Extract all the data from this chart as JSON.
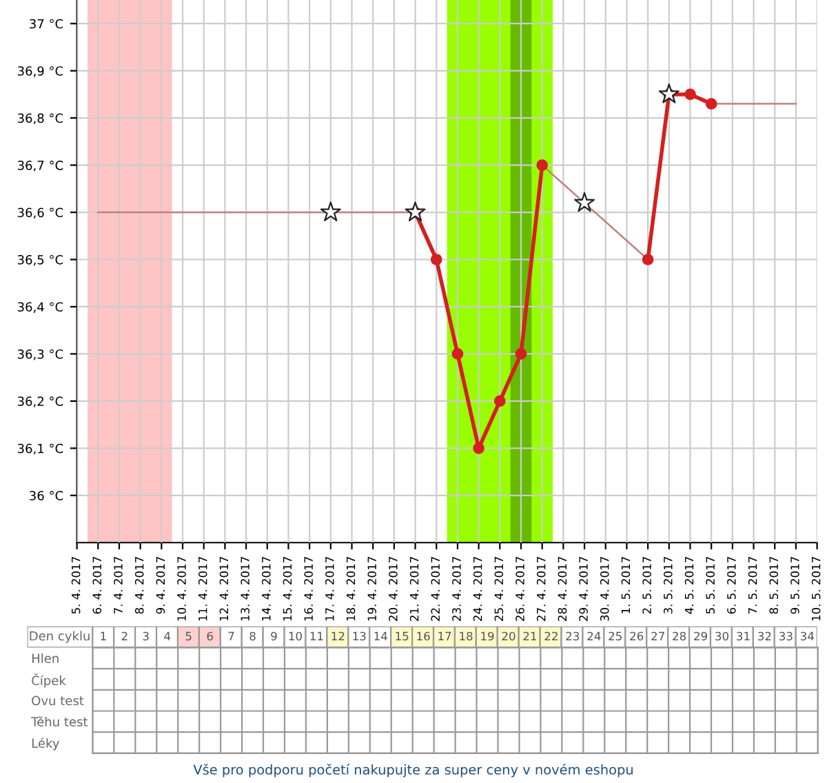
{
  "chart_data": [
    {
      "type": "line",
      "x": [
        "2017-04-06",
        "2017-04-17",
        "2017-04-21",
        "2017-04-22",
        "2017-04-27",
        "2017-04-29",
        "2017-05-02",
        "2017-05-03",
        "2017-05-05",
        "2017-05-09"
      ],
      "series": [
        {
          "color": "#c08080",
          "line_style": "solid",
          "marker": "none",
          "values": [
            36.6,
            36.6,
            36.6,
            null,
            36.7,
            36.62,
            36.5,
            null,
            36.83,
            36.83
          ]
        },
        {
          "color": "#d42020",
          "line_style": "solid",
          "marker": "circle",
          "x": [
            "2017-04-21",
            "2017-04-22",
            "2017-04-23",
            "2017-04-24",
            "2017-04-25",
            "2017-04-26",
            "2017-04-27",
            "2017-04-28",
            "2017-05-02",
            "2017-05-03",
            "2017-05-04",
            "2017-05-05"
          ],
          "values": [
            36.6,
            36.5,
            36.3,
            36.1,
            36.2,
            36.3,
            36.7,
            null,
            36.5,
            36.85,
            36.85,
            36.83
          ]
        },
        {
          "type": "scatter",
          "color": "#ffffff",
          "marker": "star",
          "x": [
            "2017-04-17",
            "2017-04-21",
            "2017-04-29",
            "2017-05-03"
          ],
          "values": [
            36.6,
            36.6,
            36.62,
            36.85
          ]
        }
      ],
      "bands": [
        {
          "axis": "x",
          "from": "2017-04-05T12:00",
          "to": "2017-04-09T12:00",
          "color": "#ffc4c4"
        },
        {
          "axis": "x",
          "from": "2017-04-22T12:00",
          "to": "2017-04-27T12:00",
          "color": "#99ff00"
        },
        {
          "axis": "x",
          "from": "2017-04-25T12:00",
          "to": "2017-04-26T12:00",
          "color": "#66bb00"
        }
      ],
      "xlim": [
        "2017-04-05",
        "2017-05-10"
      ],
      "xticks": [
        {
          "value": "2017-04-05",
          "label": "5. 4. 2017"
        },
        {
          "value": "2017-04-06",
          "label": "6. 4. 2017"
        },
        {
          "value": "2017-04-07",
          "label": "7. 4. 2017"
        },
        {
          "value": "2017-04-08",
          "label": "8. 4. 2017"
        },
        {
          "value": "2017-04-09",
          "label": "9. 4. 2017"
        },
        {
          "value": "2017-04-10",
          "label": "10. 4. 2017"
        },
        {
          "value": "2017-04-11",
          "label": "11. 4. 2017"
        },
        {
          "value": "2017-04-12",
          "label": "12. 4. 2017"
        },
        {
          "value": "2017-04-13",
          "label": "13. 4. 2017"
        },
        {
          "value": "2017-04-14",
          "label": "14. 4. 2017"
        },
        {
          "value": "2017-04-15",
          "label": "15. 4. 2017"
        },
        {
          "value": "2017-04-16",
          "label": "16. 4. 2017"
        },
        {
          "value": "2017-04-17",
          "label": "17. 4. 2017"
        },
        {
          "value": "2017-04-18",
          "label": "18. 4. 2017"
        },
        {
          "value": "2017-04-19",
          "label": "19. 4. 2017"
        },
        {
          "value": "2017-04-20",
          "label": "20. 4. 2017"
        },
        {
          "value": "2017-04-21",
          "label": "21. 4. 2017"
        },
        {
          "value": "2017-04-22",
          "label": "22. 4. 2017"
        },
        {
          "value": "2017-04-23",
          "label": "23. 4. 2017"
        },
        {
          "value": "2017-04-24",
          "label": "24. 4. 2017"
        },
        {
          "value": "2017-04-25",
          "label": "25. 4. 2017"
        },
        {
          "value": "2017-04-26",
          "label": "26. 4. 2017"
        },
        {
          "value": "2017-04-27",
          "label": "27. 4. 2017"
        },
        {
          "value": "2017-04-28",
          "label": "28. 4. 2017"
        },
        {
          "value": "2017-04-29",
          "label": "29. 4. 2017"
        },
        {
          "value": "2017-04-30",
          "label": "30. 4. 2017"
        },
        {
          "value": "2017-05-01",
          "label": "1. 5. 2017"
        },
        {
          "value": "2017-05-02",
          "label": "2. 5. 2017"
        },
        {
          "value": "2017-05-03",
          "label": "3. 5. 2017"
        },
        {
          "value": "2017-05-04",
          "label": "4. 5. 2017"
        },
        {
          "value": "2017-05-05",
          "label": "5. 5. 2017"
        },
        {
          "value": "2017-05-06",
          "label": "6. 5. 2017"
        },
        {
          "value": "2017-05-07",
          "label": "7. 5. 2017"
        },
        {
          "value": "2017-05-08",
          "label": "8. 5. 2017"
        },
        {
          "value": "2017-05-09",
          "label": "9. 5. 2017"
        },
        {
          "value": "2017-05-10",
          "label": "10. 5. 2017"
        }
      ],
      "ylim": [
        35.9,
        37.05
      ],
      "yticks": [
        {
          "value": 36,
          "label": "36 °C"
        },
        {
          "value": 36.1,
          "label": "36,1 °C"
        },
        {
          "value": 36.2,
          "label": "36,2 °C"
        },
        {
          "value": 36.3,
          "label": "36,3 °C"
        },
        {
          "value": 36.4,
          "label": "36,4 °C"
        },
        {
          "value": 36.5,
          "label": "36,5 °C"
        },
        {
          "value": 36.6,
          "label": "36,6 °C"
        },
        {
          "value": 36.7,
          "label": "36,7 °C"
        },
        {
          "value": 36.8,
          "label": "36,8 °C"
        },
        {
          "value": 36.9,
          "label": "36,9 °C"
        },
        {
          "value": 37,
          "label": "37 °C"
        }
      ],
      "grid": true,
      "legend": false
    },
    {
      "type": "heatmap",
      "xlabel": "Den cyklu",
      "cells": [
        [
          null,
          null,
          null,
          null,
          null,
          null,
          null,
          null,
          null,
          null,
          null,
          null,
          null,
          null,
          null,
          null,
          null,
          null,
          null,
          null,
          null,
          null,
          null,
          null,
          null,
          null,
          null,
          null,
          null,
          null,
          null,
          null,
          null,
          null
        ],
        [
          null,
          null,
          null,
          null,
          null,
          null,
          null,
          null,
          null,
          null,
          null,
          null,
          null,
          null,
          null,
          null,
          null,
          null,
          null,
          null,
          null,
          null,
          null,
          null,
          null,
          null,
          null,
          null,
          null,
          null,
          null,
          null,
          null,
          null
        ],
        [
          null,
          null,
          null,
          null,
          null,
          null,
          null,
          null,
          null,
          null,
          null,
          null,
          null,
          null,
          null,
          null,
          null,
          null,
          null,
          null,
          null,
          null,
          null,
          null,
          null,
          null,
          null,
          null,
          null,
          null,
          null,
          null,
          null,
          null
        ],
        [
          null,
          null,
          null,
          null,
          null,
          null,
          null,
          null,
          null,
          null,
          null,
          null,
          null,
          null,
          null,
          null,
          null,
          null,
          null,
          null,
          null,
          null,
          null,
          null,
          null,
          null,
          null,
          null,
          null,
          null,
          null,
          null,
          null,
          null
        ],
        [
          null,
          null,
          null,
          null,
          null,
          null,
          null,
          null,
          null,
          null,
          null,
          null,
          null,
          null,
          null,
          null,
          null,
          null,
          null,
          null,
          null,
          null,
          null,
          null,
          null,
          null,
          null,
          null,
          null,
          null,
          null,
          null,
          null,
          null
        ]
      ],
      "categories": [
        "1",
        "2",
        "3",
        "4",
        "5",
        "6",
        "7",
        "8",
        "9",
        "10",
        "11",
        "12",
        "13",
        "14",
        "15",
        "16",
        "17",
        "18",
        "19",
        "20",
        "21",
        "22",
        "23",
        "24",
        "25",
        "26",
        "27",
        "28",
        "29",
        "30",
        "31",
        "32",
        "33",
        "34"
      ],
      "colors": [
        "#ffffff",
        "#ffffff",
        "#ffffff",
        "#ffffff",
        "#ffd0d0",
        "#ffd0d0",
        "#ffffff",
        "#ffffff",
        "#ffffff",
        "#ffffff",
        "#ffffff",
        "#fff8c8",
        "#ffffff",
        "#ffffff",
        "#fff8c8",
        "#fff8c8",
        "#fff8c8",
        "#fff8c8",
        "#fff8c8",
        "#fff8c8",
        "#fff8c8",
        "#fff8c8",
        "#ffffff",
        "#ffffff",
        "#ffffff",
        "#ffffff",
        "#ffffff",
        "#ffffff",
        "#ffffff",
        "#ffffff",
        "#ffffff",
        "#ffffff",
        "#ffffff",
        "#ffffff"
      ],
      "y_categories": [
        "Hlen",
        "Čípek",
        "Ovu test",
        "Těhu test",
        "Léky"
      ],
      "annotations": [
        "Vše pro podporu početí nakupujte za super ceny v novém eshopu"
      ]
    }
  ]
}
